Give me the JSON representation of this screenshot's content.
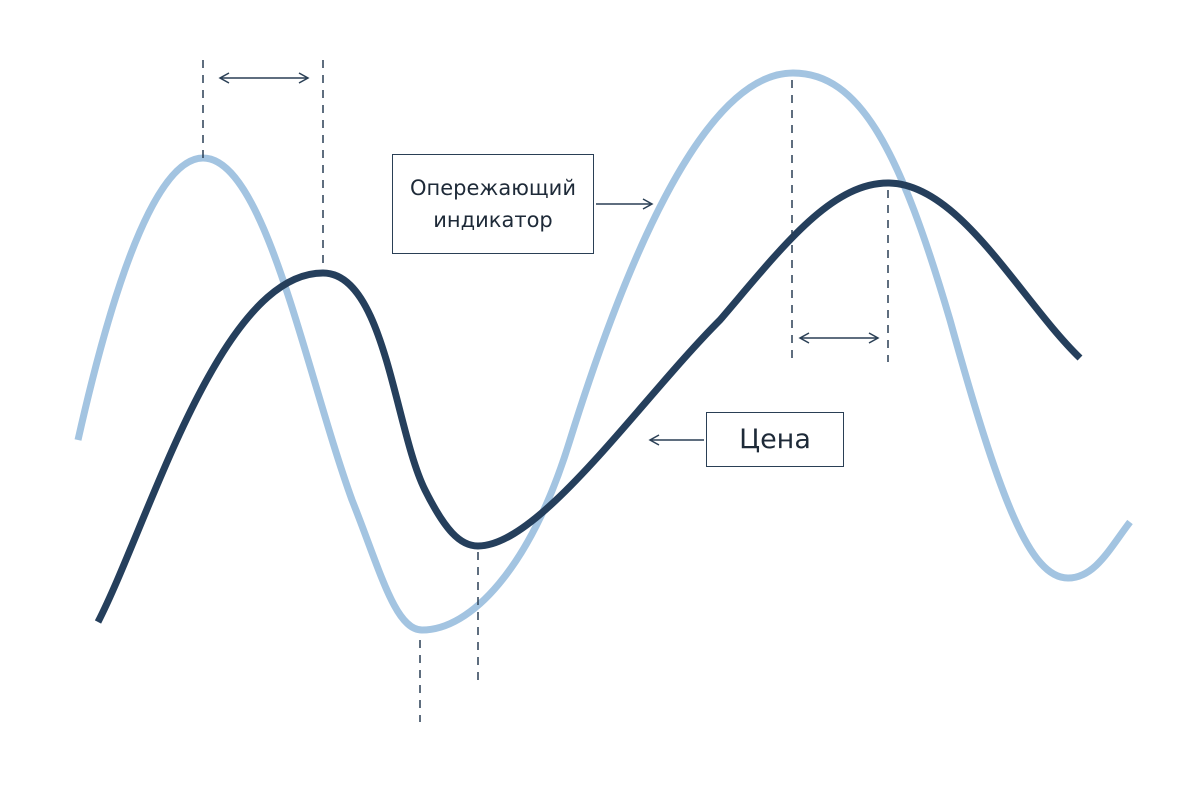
{
  "diagram": {
    "labels": {
      "leading_indicator": "Опережающий\nиндикатор",
      "price": "Цена"
    },
    "colors": {
      "indicator_line": "#a3c4e1",
      "price_line": "#253f5c",
      "annotation": "#2a3f55",
      "background": "#ffffff"
    },
    "curves": [
      {
        "id": "leading-indicator",
        "label_ref": "labels.leading_indicator"
      },
      {
        "id": "price",
        "label_ref": "labels.price"
      }
    ]
  }
}
